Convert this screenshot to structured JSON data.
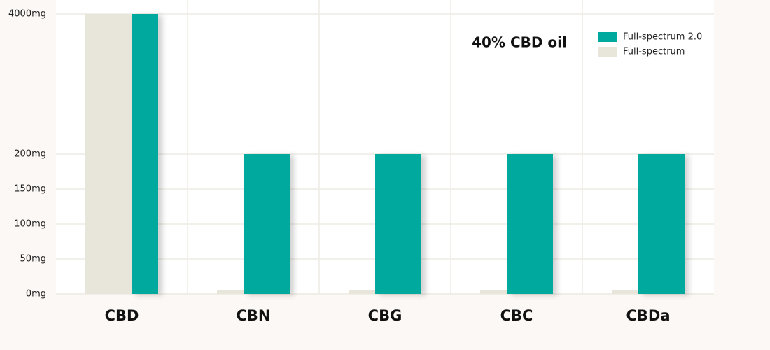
{
  "chart_data": {
    "type": "bar",
    "title": "40% CBD oil",
    "categories": [
      "CBD",
      "CBN",
      "CBG",
      "CBC",
      "CBDa"
    ],
    "series": [
      {
        "name": "Full-spectrum 2.0",
        "color": "#00a99d",
        "values": [
          4000,
          200,
          200,
          200,
          200
        ]
      },
      {
        "name": "Full-spectrum",
        "color": "#e8e6da",
        "values": [
          4000,
          5,
          5,
          5,
          5
        ]
      }
    ],
    "ylim": [
      0,
      4000
    ],
    "yticks": [
      {
        "value": 0,
        "label": "0mg"
      },
      {
        "value": 50,
        "label": "50mg"
      },
      {
        "value": 100,
        "label": "100mg"
      },
      {
        "value": 150,
        "label": "150mg"
      },
      {
        "value": 200,
        "label": "200mg"
      },
      {
        "value": 4000,
        "label": "4000mg"
      }
    ],
    "grid": true,
    "legend": "top-right"
  }
}
